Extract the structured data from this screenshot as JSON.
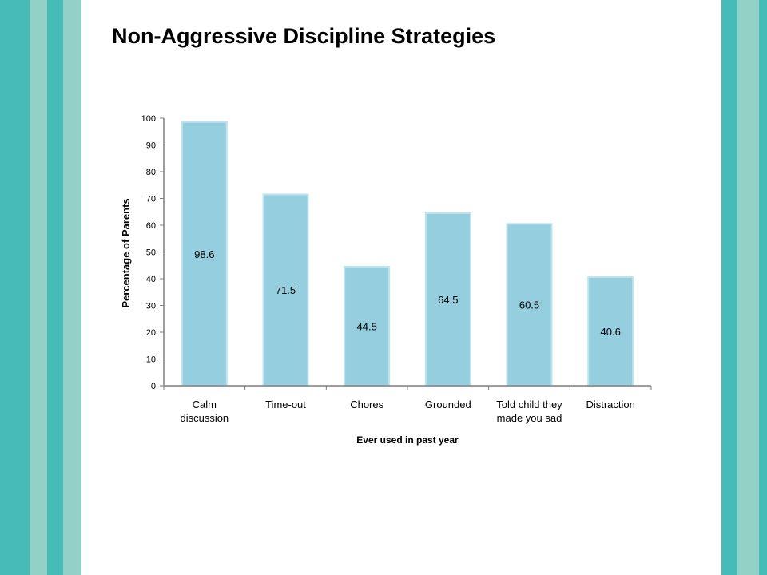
{
  "slide": {
    "title": "Non-Aggressive Discipline Strategies"
  },
  "colors": {
    "stripe_dark": "#45bcb8",
    "stripe_light": "#93d0c5",
    "bar_fill": "#95cede",
    "bar_edge": "#bfe3ee",
    "axis": "#7f7f7f"
  },
  "chart_data": {
    "type": "bar",
    "categories": [
      [
        "Calm",
        "discussion"
      ],
      [
        "Time-out"
      ],
      [
        "Chores"
      ],
      [
        "Grounded"
      ],
      [
        "Told child they",
        "made you sad"
      ],
      [
        "Distraction"
      ]
    ],
    "values": [
      98.6,
      71.5,
      44.5,
      64.5,
      60.5,
      40.6
    ],
    "data_labels": [
      "98.6",
      "71.5",
      "44.5",
      "64.5",
      "60.5",
      "40.6"
    ],
    "xlabel": "Ever used in past year",
    "ylabel": "Percentage of Parents",
    "ylim": [
      0,
      100
    ],
    "yticks": [
      0,
      10,
      20,
      30,
      40,
      50,
      60,
      70,
      80,
      90,
      100
    ],
    "grid": false,
    "legend": "none"
  }
}
